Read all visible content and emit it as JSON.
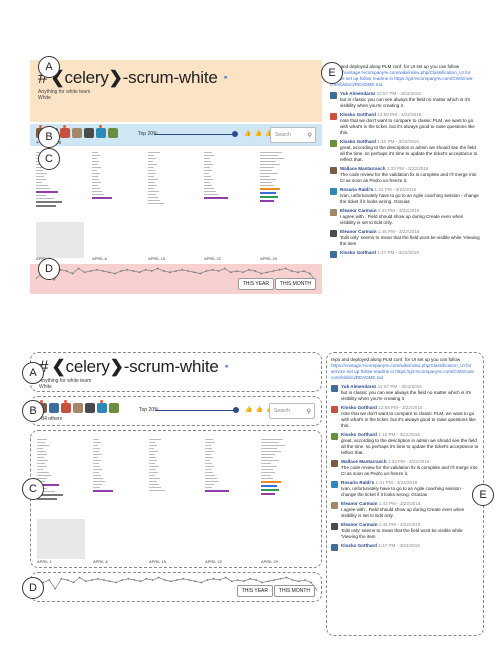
{
  "channel": {
    "hash": "#",
    "name": "celery",
    "suffix": "-scrum-white",
    "description": "Anything for white team",
    "subdescription": "White"
  },
  "members": {
    "others_label": "+ 84 others",
    "top_label": "Top 20%",
    "search_placeholder": "Search"
  },
  "timeline": {
    "dates": [
      "APRIL 1",
      "APRIL 8",
      "APRIL 15",
      "APRIL 22",
      "APRIL 29"
    ]
  },
  "activity": {
    "this_year": "THIS YEAR",
    "this_month": "THIS MONTH",
    "series": [
      6,
      10,
      12,
      5,
      13,
      12,
      10,
      14,
      11,
      12,
      13,
      12,
      11,
      10,
      12,
      13,
      12,
      11,
      13,
      12,
      14,
      12,
      11,
      12,
      13,
      12,
      11,
      10,
      12,
      13,
      12,
      14,
      11,
      12,
      11,
      13,
      12,
      10,
      11,
      12,
      13,
      14,
      12,
      11,
      12,
      10,
      4
    ]
  },
  "labels": {
    "a": "A",
    "b": "B",
    "c": "C",
    "d": "D",
    "e": "E"
  },
  "messages": [
    {
      "author": "",
      "time": "",
      "text": "repo and deployed along PLM conf. for UI set up you can follow ",
      "link": "https://vantage.%company%.com/wiki/index.php/Classification_UI for service set up follow readme in https://git.%company%.com/CWS/cws-core/blob/ci/README.md"
    },
    {
      "author": "Yuk Almendarez",
      "time": "12:57 PM - 3/22/2016",
      "text": "but in classic you can see always the field no matter which is it's visibility when you're creating it",
      "link": ""
    },
    {
      "author": "Klosko Gotthard",
      "time": "12:58 PM - 3/22/2016",
      "text": "note that we don't want to compare to classic PLM, we want to go with what's in the ticket. but it's always good to raise questions like this.",
      "link": ""
    },
    {
      "author": "Klosko Gotthard",
      "time": "1:10 PM - 3/22/2016",
      "text": "great, according to the description in admin we should see the field all the time. so perhaps it's time to update the ticket's acceptance to reflect that.",
      "link": ""
    },
    {
      "author": "Wallace Mantarrasch",
      "time": "1:33 PM - 3/22/2016",
      "text": "The code review for the validation fix is complete and I'll merge into CI as soon as Pedro un-freeze it.",
      "link": ""
    },
    {
      "author": "Rosario Raldi's",
      "time": "1:41 PM - 3/22/2016",
      "text": "Ivan, unfortunately have to go to an Agile coaching session - change the ticket if it looks wrong. Gracias",
      "link": ""
    },
    {
      "author": "Eleanor Carmain",
      "time": "1:43 PM - 3/22/2016",
      "text": "I agree with      . Field should show up during Create even when visibility is set to Edit only.",
      "link": ""
    },
    {
      "author": "Eleanor Carmain",
      "time": "1:45 PM - 3/22/2016",
      "text": "'Edit only' seems to mean that the field wont be visible while 'Viewing the item",
      "link": ""
    },
    {
      "author": "Klosko Gotthard",
      "time": "1:47 PM - 3/22/2016",
      "text": "",
      "link": ""
    }
  ],
  "colors": {
    "panel_a": "#fbe3c6",
    "panel_b": "#cfe7f5",
    "panel_d": "#f7d0d0",
    "accent": "#2d4a8a",
    "link": "#3a6fd8"
  }
}
